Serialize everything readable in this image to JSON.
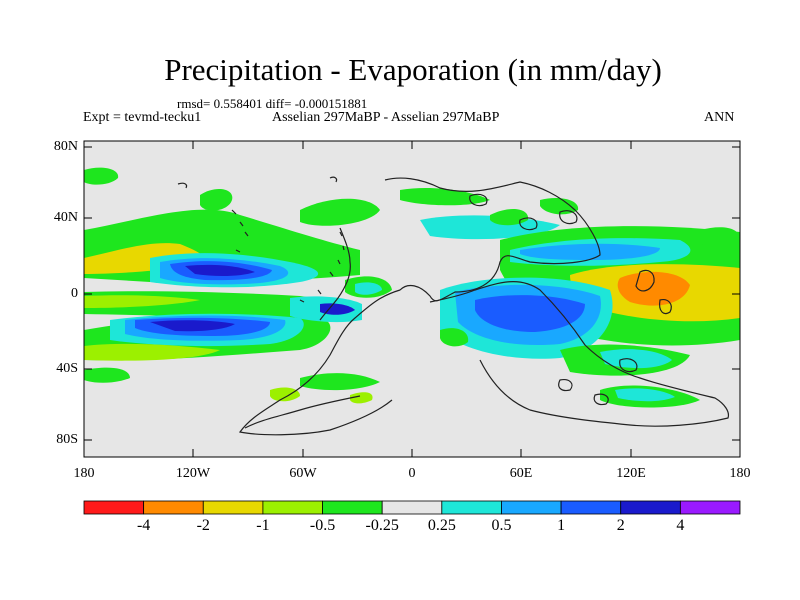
{
  "title": "Precipitation - Evaporation (in mm/day)",
  "stats": "rmsd= 0.558401  diff= -0.000151881",
  "expt": "Expt = tevmd-tecku1",
  "subtitle": "Asselian 297MaBP - Asselian 297MaBP",
  "season": "ANN",
  "y_axis": {
    "labels": [
      "80N",
      "40N",
      "0",
      "40S",
      "80S"
    ],
    "lat_values": [
      80,
      40,
      0,
      -40,
      -80
    ]
  },
  "x_axis": {
    "labels": [
      "180",
      "120W",
      "60W",
      "0",
      "60E",
      "120E",
      "180"
    ],
    "lon_values": [
      -180,
      -120,
      -60,
      0,
      60,
      120,
      180
    ]
  },
  "colorbar": {
    "colors": [
      "#ff1a1a",
      "#ff8a00",
      "#e8d800",
      "#9cf000",
      "#1ee61e",
      "#e6e6e6",
      "#1ee6d8",
      "#19a8ff",
      "#1a5cff",
      "#1a1acc",
      "#9a1aff"
    ],
    "labels": [
      "-4",
      "-2",
      "-1",
      "-0.5",
      "-0.25",
      "0.25",
      "0.5",
      "1",
      "2",
      "4"
    ]
  },
  "map": {
    "background_color": "#e6e6e6",
    "lat_range": [
      -90,
      90
    ],
    "lon_range": [
      -180,
      180
    ]
  }
}
